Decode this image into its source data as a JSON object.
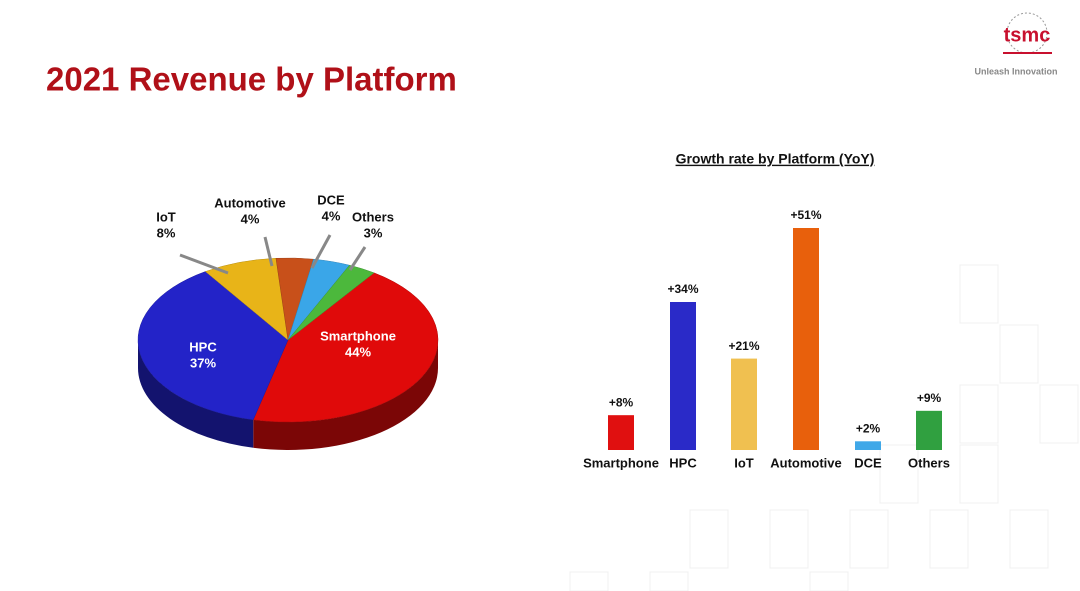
{
  "header": {
    "title": "2021 Revenue by Platform",
    "logo": "tsmc",
    "tagline": "Unleash Innovation"
  },
  "chart_data": [
    {
      "type": "pie",
      "categories": [
        "Smartphone",
        "HPC",
        "IoT",
        "Automotive",
        "DCE",
        "Others"
      ],
      "values": [
        44,
        37,
        8,
        4,
        4,
        3
      ],
      "value_labels": [
        "44%",
        "37%",
        "8%",
        "4%",
        "4%",
        "3%"
      ],
      "colors": [
        "#e00a0a",
        "#2323c8",
        "#e8b418",
        "#c8501a",
        "#3aa6e8",
        "#4cb83c"
      ]
    },
    {
      "type": "bar",
      "title": "Growth rate by Platform (YoY)",
      "categories": [
        "Smartphone",
        "HPC",
        "IoT",
        "Automotive",
        "DCE",
        "Others"
      ],
      "values": [
        8,
        34,
        21,
        51,
        2,
        9
      ],
      "value_labels": [
        "+8%",
        "+34%",
        "+21%",
        "+51%",
        "+2%",
        "+9%"
      ],
      "colors": [
        "#e01010",
        "#2a2ac8",
        "#f0c050",
        "#e8600c",
        "#40a8e8",
        "#30a040"
      ]
    }
  ]
}
